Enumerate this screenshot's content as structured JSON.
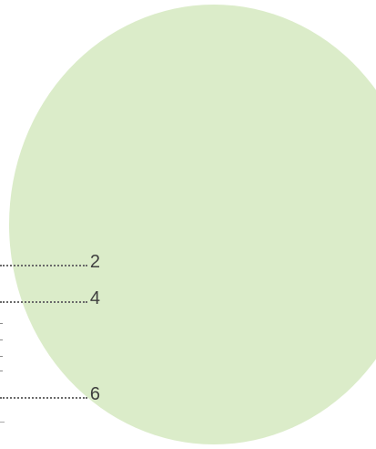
{
  "document": {
    "toc_entries": [
      {
        "page_number": "2"
      },
      {
        "page_number": "4"
      },
      {
        "page_number": "6"
      }
    ]
  },
  "colors": {
    "accent_circle": "#d9ebc6",
    "text": "#3f3f3f",
    "leader": "#6a6a6a"
  }
}
